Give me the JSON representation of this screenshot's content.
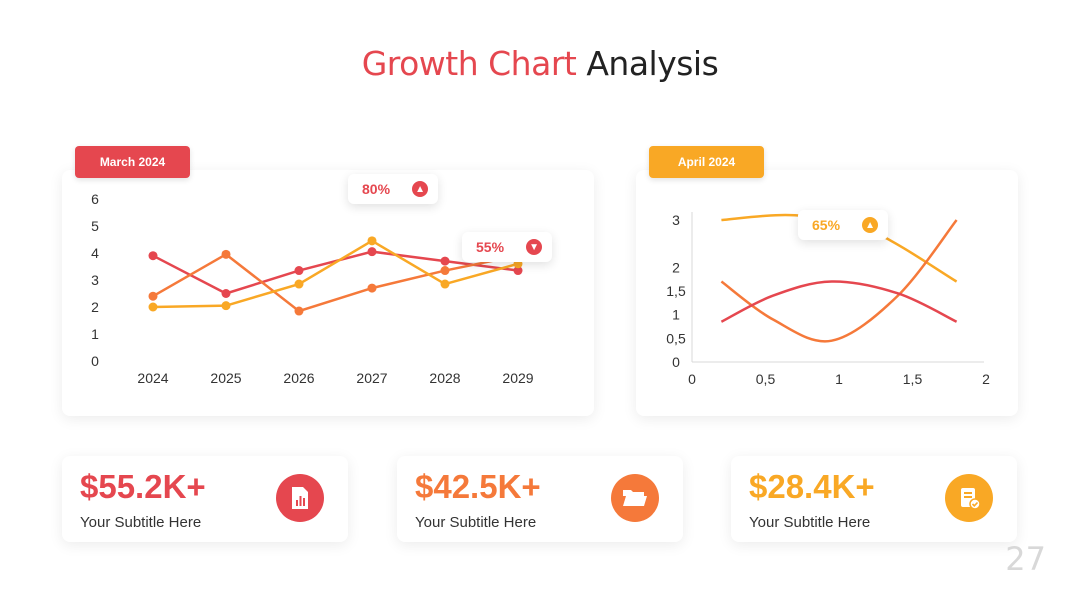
{
  "title": {
    "accent": "Growth Chart",
    "rest": "Analysis"
  },
  "colors": {
    "red": "#e5474f",
    "orange": "#f5793a",
    "yellow": "#f9a825"
  },
  "page_number": "27",
  "chart_data": [
    {
      "type": "line",
      "tag": "March 2024",
      "categories": [
        "2024",
        "2025",
        "2026",
        "2027",
        "2028",
        "2029"
      ],
      "ylim": [
        0,
        6
      ],
      "yticks": [
        "0",
        "1",
        "2",
        "3",
        "4",
        "5",
        "6"
      ],
      "grid": false,
      "series": [
        {
          "color": "#e5474f",
          "values": [
            3.9,
            2.5,
            3.35,
            4.05,
            3.7,
            3.35
          ]
        },
        {
          "color": "#f5793a",
          "values": [
            2.4,
            3.95,
            1.85,
            2.7,
            3.35,
            3.9
          ]
        },
        {
          "color": "#f9a825",
          "values": [
            2.0,
            2.05,
            2.85,
            4.45,
            2.85,
            3.6
          ]
        }
      ],
      "annotations": [
        {
          "text": "80%",
          "color": "#e5474f"
        },
        {
          "text": "55%",
          "color": "#e5474f"
        }
      ]
    },
    {
      "type": "line",
      "tag": "April 2024",
      "xlim": [
        0,
        2
      ],
      "ylim": [
        0,
        3
      ],
      "xticks": [
        "0",
        "0,5",
        "1",
        "1,5",
        "2"
      ],
      "yticks": [
        "0",
        "0,5",
        "1",
        "1,5",
        "2",
        "3"
      ],
      "grid": false,
      "series": [
        {
          "color": "#f9a825",
          "x": [
            0.2,
            0.7,
            1.2,
            1.8
          ],
          "y": [
            3.0,
            3.1,
            2.8,
            1.7
          ]
        },
        {
          "color": "#f5793a",
          "x": [
            0.2,
            0.55,
            0.95,
            1.4,
            1.8
          ],
          "y": [
            1.7,
            0.9,
            0.45,
            1.4,
            3.0
          ]
        },
        {
          "color": "#e5474f",
          "x": [
            0.2,
            0.55,
            0.95,
            1.4,
            1.8
          ],
          "y": [
            0.85,
            1.4,
            1.7,
            1.45,
            0.85
          ]
        }
      ],
      "annotations": [
        {
          "text": "65%",
          "color": "#f9a825"
        }
      ]
    }
  ],
  "stats": [
    {
      "value": "$55.2K+",
      "subtitle": "Your Subtitle Here",
      "color": "#e5474f",
      "icon": "report-chart-icon"
    },
    {
      "value": "$42.5K+",
      "subtitle": "Your Subtitle Here",
      "color": "#f5793a",
      "icon": "folder-icon"
    },
    {
      "value": "$28.4K+",
      "subtitle": "Your Subtitle Here",
      "color": "#f9a825",
      "icon": "checklist-icon"
    }
  ]
}
